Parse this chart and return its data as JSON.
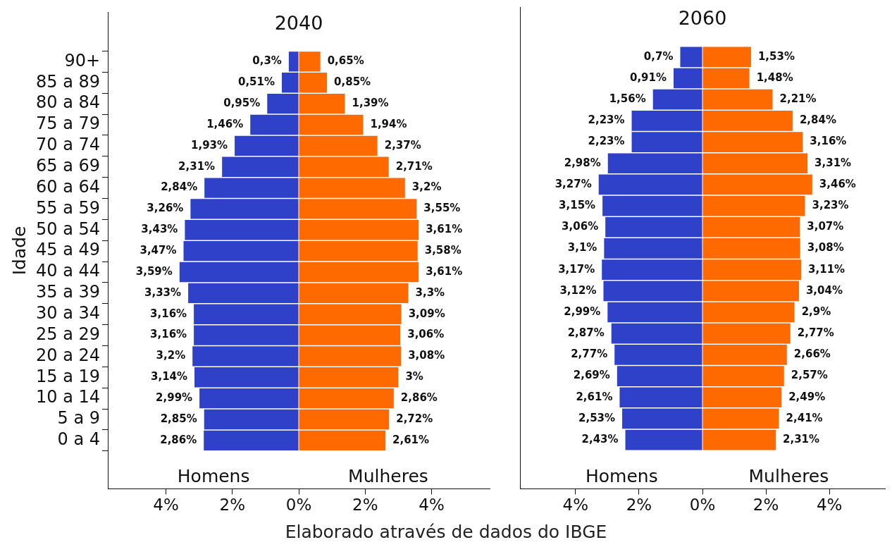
{
  "chart_data": [
    {
      "type": "bar",
      "orientation": "horizontal",
      "title": "2040",
      "ylabel": "Idade",
      "annotations": [
        "Elaborado através de dados do IBGE"
      ],
      "categories": [
        "90+",
        "85 a 89",
        "80 a 84",
        "75 a 79",
        "70 a 74",
        "65 a 69",
        "60 a 64",
        "55 a 59",
        "50 a 54",
        "45 a 49",
        "40 a 44",
        "35 a 39",
        "30 a 34",
        "25 a 29",
        "20 a 24",
        "15 a 19",
        "10 a 14",
        "5 a 9",
        "0 a 4"
      ],
      "xlim": [
        -5.75,
        5.75
      ],
      "xticks": [
        {
          "value": -4,
          "label": "4%"
        },
        {
          "value": -2,
          "label": "2%"
        },
        {
          "value": 0,
          "label": "0%"
        },
        {
          "value": 2,
          "label": "2%"
        },
        {
          "value": 4,
          "label": "4%"
        }
      ],
      "series": [
        {
          "name": "Homens",
          "color": "#2f41c9",
          "base": [
            -0.3,
            -0.51,
            -0.95,
            -1.46,
            -1.93,
            -2.31,
            -2.84,
            -3.26,
            -3.43,
            -3.47,
            -3.59,
            -3.33,
            -3.16,
            -3.16,
            -3.2,
            -3.14,
            -2.99,
            -2.85,
            -2.86
          ],
          "values": [
            0.3,
            0.51,
            0.95,
            1.46,
            1.93,
            2.31,
            2.84,
            3.26,
            3.43,
            3.47,
            3.59,
            3.33,
            3.16,
            3.16,
            3.2,
            3.14,
            2.99,
            2.85,
            2.86
          ],
          "value_labels": [
            "0,3%",
            "0,51%",
            "0,95%",
            "1,46%",
            "1,93%",
            "2,31%",
            "2,84%",
            "3,26%",
            "3,43%",
            "3,47%",
            "3,59%",
            "3,33%",
            "3,16%",
            "3,16%",
            "3,2%",
            "3,14%",
            "2,99%",
            "2,85%",
            "2,86%"
          ]
        },
        {
          "name": "Mulheres",
          "color": "#ff6a00",
          "values": [
            0.65,
            0.85,
            1.39,
            1.94,
            2.37,
            2.71,
            3.2,
            3.55,
            3.61,
            3.58,
            3.61,
            3.3,
            3.09,
            3.06,
            3.08,
            3,
            2.86,
            2.72,
            2.61
          ],
          "value_labels": [
            "0,65%",
            "0,85%",
            "1,39%",
            "1,94%",
            "2,37%",
            "2,71%",
            "3,2%",
            "3,55%",
            "3,61%",
            "3,58%",
            "3,61%",
            "3,3%",
            "3,09%",
            "3,06%",
            "3,08%",
            "3%",
            "2,86%",
            "2,72%",
            "2,61%"
          ]
        }
      ]
    },
    {
      "type": "bar",
      "orientation": "horizontal",
      "title": "2060",
      "tick_labels": "x",
      "categories": [
        null,
        null,
        null,
        null,
        null,
        null,
        null,
        null,
        null,
        null,
        null,
        null,
        null,
        null,
        null,
        null,
        null,
        null,
        null
      ],
      "xlim": [
        -5.75,
        5.75
      ],
      "xticks": [
        {
          "value": -4,
          "label": "4%"
        },
        {
          "value": -2,
          "label": "2%"
        },
        {
          "value": 0,
          "label": "0%"
        },
        {
          "value": 2,
          "label": "2%"
        },
        {
          "value": 4,
          "label": "4%"
        }
      ],
      "series": [
        {
          "name": "Homens",
          "color": "#2f41c9",
          "base": [
            -0.7,
            -0.91,
            -1.56,
            -2.23,
            -2.23,
            -2.98,
            -3.27,
            -3.15,
            -3.06,
            -3.1,
            -3.17,
            -3.12,
            -2.99,
            -2.87,
            -2.77,
            -2.69,
            -2.61,
            -2.53,
            -2.43
          ],
          "values": [
            0.7,
            0.91,
            1.56,
            2.23,
            2.23,
            2.98,
            3.27,
            3.15,
            3.06,
            3.1,
            3.17,
            3.12,
            2.99,
            2.87,
            2.77,
            2.69,
            2.61,
            2.53,
            2.43
          ],
          "value_labels": [
            "0,7%",
            "0,91%",
            "1,56%",
            "2,23%",
            "2,23%",
            "2,98%",
            "3,27%",
            "3,15%",
            "3,06%",
            "3,1%",
            "3,17%",
            "3,12%",
            "2,99%",
            "2,87%",
            "2,77%",
            "2,69%",
            "2,61%",
            "2,53%",
            "2,43%"
          ]
        },
        {
          "name": "Mulheres",
          "color": "#ff6a00",
          "values": [
            1.53,
            1.48,
            2.21,
            2.84,
            3.16,
            3.31,
            3.46,
            3.23,
            3.07,
            3.08,
            3.11,
            3.04,
            2.9,
            2.77,
            2.66,
            2.57,
            2.49,
            2.41,
            2.31
          ],
          "value_labels": [
            "1,53%",
            "1,48%",
            "2,21%",
            "2,84%",
            "3,16%",
            "3,31%",
            "3,46%",
            "3,23%",
            "3,07%",
            "3,08%",
            "3,11%",
            "3,04%",
            "2,9%",
            "2,77%",
            "2,66%",
            "2,57%",
            "2,49%",
            "2,41%",
            "2,31%"
          ]
        }
      ]
    }
  ]
}
